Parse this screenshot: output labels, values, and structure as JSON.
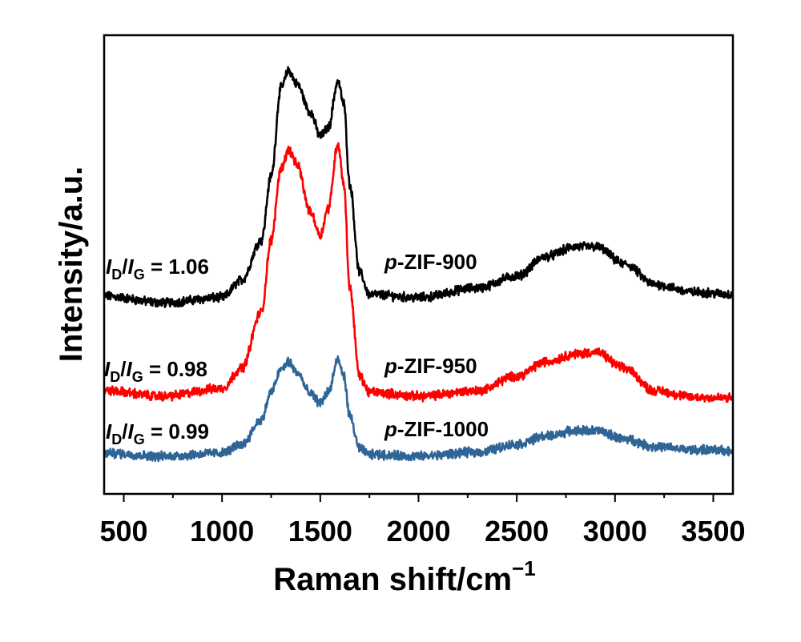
{
  "chart_data": {
    "type": "line",
    "title": "",
    "xlabel": "Raman shift/cm",
    "xlabel_superscript": "−1",
    "ylabel": "Intensity/a.u.",
    "xlim": [
      400,
      3600
    ],
    "ylim": [
      0,
      100
    ],
    "x_ticks": [
      500,
      1000,
      1500,
      2000,
      2500,
      3000,
      3500
    ],
    "x_tick_labels": [
      "500",
      "1000",
      "1500",
      "2000",
      "2500",
      "3000",
      "3500"
    ],
    "x_minor_ticks": [
      750,
      1250,
      1750,
      2250,
      2750,
      3250
    ],
    "y_ticks": [],
    "grid": false,
    "legend": "none (inline labels)",
    "x": [
      400,
      700,
      1000,
      1100,
      1200,
      1250,
      1300,
      1340,
      1380,
      1450,
      1500,
      1540,
      1590,
      1620,
      1650,
      1700,
      1750,
      2000,
      2300,
      2500,
      2650,
      2800,
      2900,
      3050,
      3200,
      3400,
      3600
    ],
    "series": [
      {
        "name": "p-ZIF-900",
        "color": "#000000",
        "ratio_label": "1.06",
        "values": [
          43.1,
          41.7,
          42.8,
          46.6,
          55.3,
          69.3,
          88.5,
          92.3,
          89.4,
          83.2,
          78.0,
          79.8,
          89.9,
          85.0,
          67.5,
          48.3,
          43.5,
          42.8,
          44.9,
          47.5,
          51.8,
          53.9,
          53.9,
          50.1,
          45.7,
          44.0,
          43.5
        ]
      },
      {
        "name": "p-ZIF-950",
        "color": "#ff0000",
        "ratio_label": "0.98",
        "values": [
          22.5,
          21.3,
          23.0,
          27.4,
          39.6,
          55.3,
          71.0,
          75.0,
          71.9,
          61.4,
          56.5,
          62.3,
          76.3,
          67.5,
          44.9,
          25.7,
          22.2,
          21.3,
          22.5,
          25.7,
          28.8,
          30.5,
          30.9,
          27.4,
          22.5,
          21.1,
          20.9
        ]
      },
      {
        "name": "p-ZIF-1000",
        "color": "#2f6497",
        "ratio_label": "0.99",
        "values": [
          8.9,
          8.2,
          8.9,
          10.8,
          16.1,
          22.2,
          27.1,
          28.8,
          26.5,
          21.8,
          19.9,
          22.2,
          29.1,
          25.7,
          16.9,
          9.9,
          8.6,
          8.2,
          9.1,
          10.8,
          12.6,
          13.8,
          13.8,
          12.0,
          10.3,
          9.6,
          9.4
        ]
      }
    ],
    "annotations": [
      {
        "ratio_prefix_i": "I",
        "sub_d": "D",
        "slash": "/",
        "sub_g": "G",
        "eq": " = ",
        "value": "1.06",
        "sample_prefix": "p",
        "sample_rest": "-ZIF-900"
      },
      {
        "ratio_prefix_i": "I",
        "sub_d": "D",
        "slash": "/",
        "sub_g": "G",
        "eq": " = ",
        "value": "0.98",
        "sample_prefix": "p",
        "sample_rest": "-ZIF-950"
      },
      {
        "ratio_prefix_i": "I",
        "sub_d": "D",
        "slash": "/",
        "sub_g": "G",
        "eq": " = ",
        "value": "0.99",
        "sample_prefix": "p",
        "sample_rest": "-ZIF-1000"
      }
    ]
  }
}
